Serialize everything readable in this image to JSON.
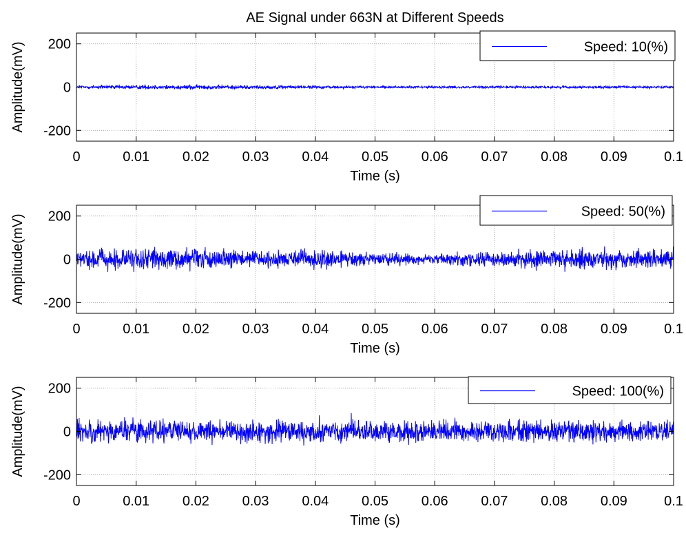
{
  "chart_data": [
    {
      "type": "line",
      "title": "AE Signal under 663N at Different Speeds",
      "xlabel": "Time (s)",
      "ylabel": "Amplitude(mV)",
      "xlim": [
        0,
        0.1
      ],
      "ylim": [
        -250,
        250
      ],
      "xticks": [
        "0",
        "0.01",
        "0.02",
        "0.03",
        "0.04",
        "0.05",
        "0.06",
        "0.07",
        "0.08",
        "0.09",
        "0.1"
      ],
      "yticks": [
        "200",
        "0",
        "-200"
      ],
      "grid": true,
      "legend_position": "top-right",
      "series": [
        {
          "name": "Speed: 10(%)",
          "color": "#0000ff",
          "sample_count": 2000,
          "amplitude_profile": {
            "t": [
              0,
              0.015,
              0.05,
              0.1
            ],
            "peak_mV": [
              12,
              16,
              8,
              8
            ]
          }
        }
      ]
    },
    {
      "type": "line",
      "title": "",
      "xlabel": "Time (s)",
      "ylabel": "Amplitude(mV)",
      "xlim": [
        0,
        0.1
      ],
      "ylim": [
        -250,
        250
      ],
      "xticks": [
        "0",
        "0.01",
        "0.02",
        "0.03",
        "0.04",
        "0.05",
        "0.06",
        "0.07",
        "0.08",
        "0.09",
        "0.1"
      ],
      "yticks": [
        "200",
        "0",
        "-200"
      ],
      "grid": true,
      "legend_position": "top-right",
      "series": [
        {
          "name": "Speed: 50(%)",
          "color": "#0000ff",
          "sample_count": 2000,
          "amplitude_profile": {
            "t": [
              0,
              0.01,
              0.04,
              0.06,
              0.08,
              0.1
            ],
            "peak_mV": [
              60,
              70,
              55,
              35,
              65,
              70
            ]
          }
        }
      ]
    },
    {
      "type": "line",
      "title": "",
      "xlabel": "Time (s)",
      "ylabel": "Amplitude(mV)",
      "xlim": [
        0,
        0.1
      ],
      "ylim": [
        -250,
        250
      ],
      "xticks": [
        "0",
        "0.01",
        "0.02",
        "0.03",
        "0.04",
        "0.05",
        "0.06",
        "0.07",
        "0.08",
        "0.09",
        "0.1"
      ],
      "yticks": [
        "200",
        "0",
        "-200"
      ],
      "grid": true,
      "legend_position": "top-right",
      "series": [
        {
          "name": "Speed: 100(%)",
          "color": "#0000ff",
          "sample_count": 2000,
          "amplitude_profile": {
            "t": [
              0,
              0.01,
              0.05,
              0.08,
              0.1
            ],
            "peak_mV": [
              85,
              75,
              70,
              75,
              65
            ]
          }
        }
      ]
    }
  ]
}
